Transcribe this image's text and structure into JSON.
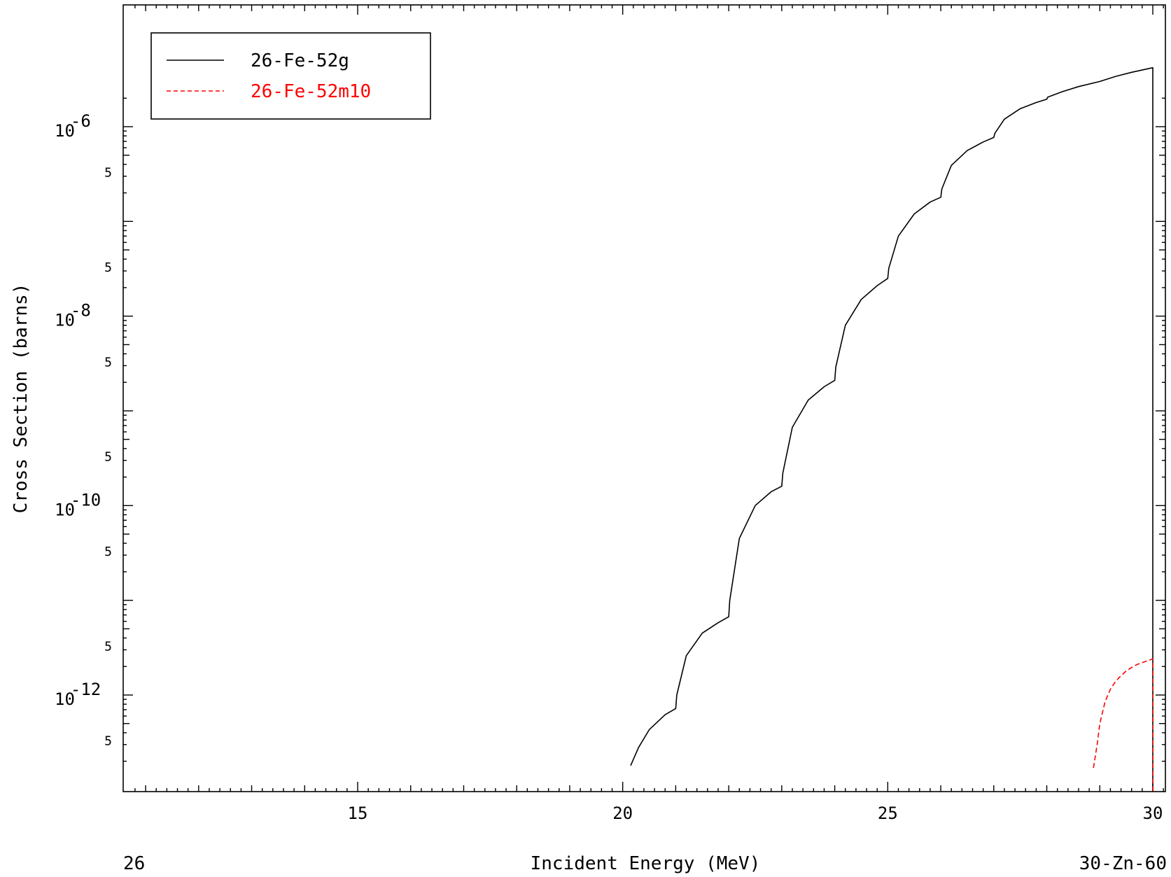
{
  "chart_data": {
    "type": "line",
    "xlabel": "Incident Energy (MeV)",
    "ylabel": "Cross Section (barns)",
    "footer_left": "26",
    "footer_right": "30-Zn-60",
    "xlim": [
      10.6,
      30.3
    ],
    "ylim": [
      1.7e-13,
      2.3e-06
    ],
    "y_scale": "log",
    "grid": false,
    "legend_position": "top-left",
    "x_ticks": [
      15,
      20,
      25,
      30
    ],
    "x_tick_labels": [
      "15",
      "20",
      "25",
      "30"
    ],
    "y_major_ticks": [
      {
        "exponent": "-6",
        "value": 1e-06
      },
      {
        "exponent": "-8",
        "value": 1e-08
      },
      {
        "exponent": "-10",
        "value": 1e-10
      },
      {
        "exponent": "-12",
        "value": 1e-12
      }
    ],
    "y_minor_label": "5",
    "series": [
      {
        "name": "26-Fe-52g",
        "color": "#000000",
        "style": "solid",
        "x": [
          20.15,
          20.3,
          20.5,
          20.8,
          21.0,
          21.02,
          21.2,
          21.5,
          21.8,
          22.0,
          22.02,
          22.2,
          22.5,
          22.8,
          23.0,
          23.02,
          23.2,
          23.5,
          23.8,
          24.0,
          24.02,
          24.2,
          24.5,
          24.8,
          25.0,
          25.02,
          25.2,
          25.5,
          25.8,
          26.0,
          26.02,
          26.2,
          26.5,
          26.8,
          27.0,
          27.02,
          27.2,
          27.5,
          27.8,
          28.0,
          28.02,
          28.3,
          28.6,
          29.0,
          29.3,
          29.6,
          30.0
        ],
        "y": [
          1.8e-13,
          2.8e-13,
          4.3e-13,
          6.2e-13,
          7.2e-13,
          1e-12,
          2.6e-12,
          4.5e-12,
          5.8e-12,
          6.7e-12,
          1e-11,
          4.5e-11,
          1e-10,
          1.4e-10,
          1.6e-10,
          2.2e-10,
          6.7e-10,
          1.3e-09,
          1.8e-09,
          2.1e-09,
          2.9e-09,
          8e-09,
          1.5e-08,
          2.1e-08,
          2.5e-08,
          3.2e-08,
          7e-08,
          1.2e-07,
          1.6e-07,
          1.8e-07,
          2.2e-07,
          3.9e-07,
          5.6e-07,
          6.9e-07,
          7.7e-07,
          8.5e-07,
          1.2e-06,
          1.55e-06,
          1.8e-06,
          1.95e-06,
          2.05e-06,
          2.35e-06,
          2.65e-06,
          3e-06,
          3.4e-06,
          3.75e-06,
          4.2e-06
        ]
      },
      {
        "name": "26-Fe-52m10",
        "color": "#ff0000",
        "style": "dashed",
        "x": [
          28.88,
          28.95,
          29.0,
          29.1,
          29.2,
          29.3,
          29.4,
          29.5,
          29.6,
          29.7,
          29.8,
          29.9,
          30.0
        ],
        "y": [
          1.7e-13,
          3e-13,
          5e-13,
          8.5e-13,
          1.15e-12,
          1.4e-12,
          1.6e-12,
          1.8e-12,
          1.95e-12,
          2.1e-12,
          2.2e-12,
          2.3e-12,
          2.4e-12
        ]
      }
    ]
  }
}
